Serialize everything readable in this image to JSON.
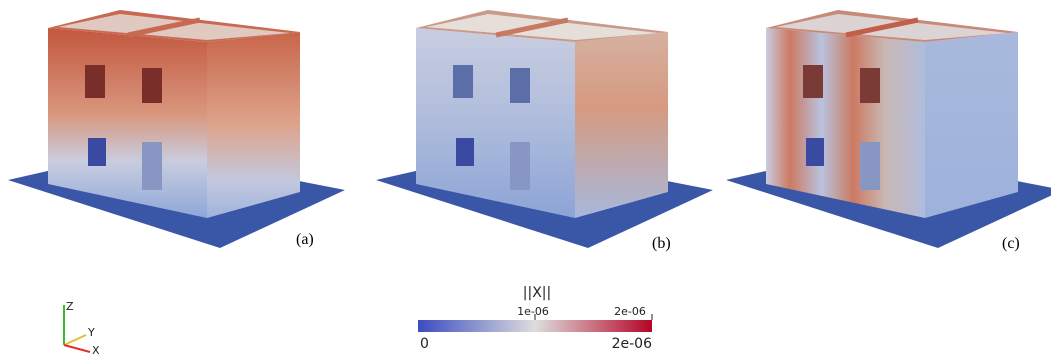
{
  "panels": [
    {
      "label": "(a)"
    },
    {
      "label": "(b)"
    },
    {
      "label": "(c)"
    }
  ],
  "colorbar": {
    "title": "||X||",
    "ticks": [
      "1e-06",
      "2e-06"
    ],
    "min_label": "0",
    "max_label": "2e-06"
  },
  "axes_triad": {
    "z": "Z",
    "y": "Y",
    "x": "X"
  }
}
